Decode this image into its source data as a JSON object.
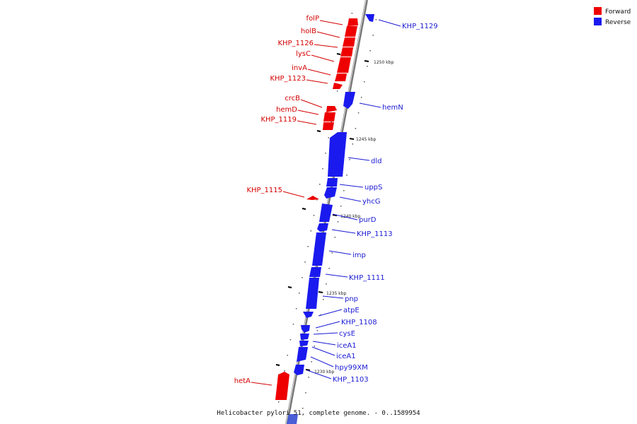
{
  "legend": {
    "forward": {
      "label": "Forward",
      "color": "#ee0000"
    },
    "reverse": {
      "label": "Reverse",
      "color": "#1a1aee"
    }
  },
  "caption": "Helicobacter pylori 51, complete genome. - 0..1589954",
  "scale_marks": [
    "1250 kbp",
    "1245 kbp",
    "1240 kbp",
    "1235 kbp",
    "1230 kbp"
  ],
  "genes": [
    {
      "name": "folP",
      "strand": "forward"
    },
    {
      "name": "holB",
      "strand": "forward"
    },
    {
      "name": "KHP_1126",
      "strand": "forward"
    },
    {
      "name": "lysC",
      "strand": "forward"
    },
    {
      "name": "invA",
      "strand": "forward"
    },
    {
      "name": "KHP_1123",
      "strand": "forward"
    },
    {
      "name": "crcB",
      "strand": "forward"
    },
    {
      "name": "hemD",
      "strand": "forward"
    },
    {
      "name": "KHP_1119",
      "strand": "forward"
    },
    {
      "name": "KHP_1115",
      "strand": "forward"
    },
    {
      "name": "hetA",
      "strand": "forward"
    },
    {
      "name": "KHP_1129",
      "strand": "reverse"
    },
    {
      "name": "hemN",
      "strand": "reverse"
    },
    {
      "name": "dld",
      "strand": "reverse"
    },
    {
      "name": "uppS",
      "strand": "reverse"
    },
    {
      "name": "yhcG",
      "strand": "reverse"
    },
    {
      "name": "purD",
      "strand": "reverse"
    },
    {
      "name": "KHP_1113",
      "strand": "reverse"
    },
    {
      "name": "imp",
      "strand": "reverse"
    },
    {
      "name": "KHP_1111",
      "strand": "reverse"
    },
    {
      "name": "pnp",
      "strand": "reverse"
    },
    {
      "name": "atpE",
      "strand": "reverse"
    },
    {
      "name": "KHP_1108",
      "strand": "reverse"
    },
    {
      "name": "cysE",
      "strand": "reverse"
    },
    {
      "name": "iceA1",
      "strand": "reverse"
    },
    {
      "name": "iceA1",
      "strand": "reverse"
    },
    {
      "name": "hpy99XM",
      "strand": "reverse"
    },
    {
      "name": "KHP_1103",
      "strand": "reverse"
    }
  ]
}
